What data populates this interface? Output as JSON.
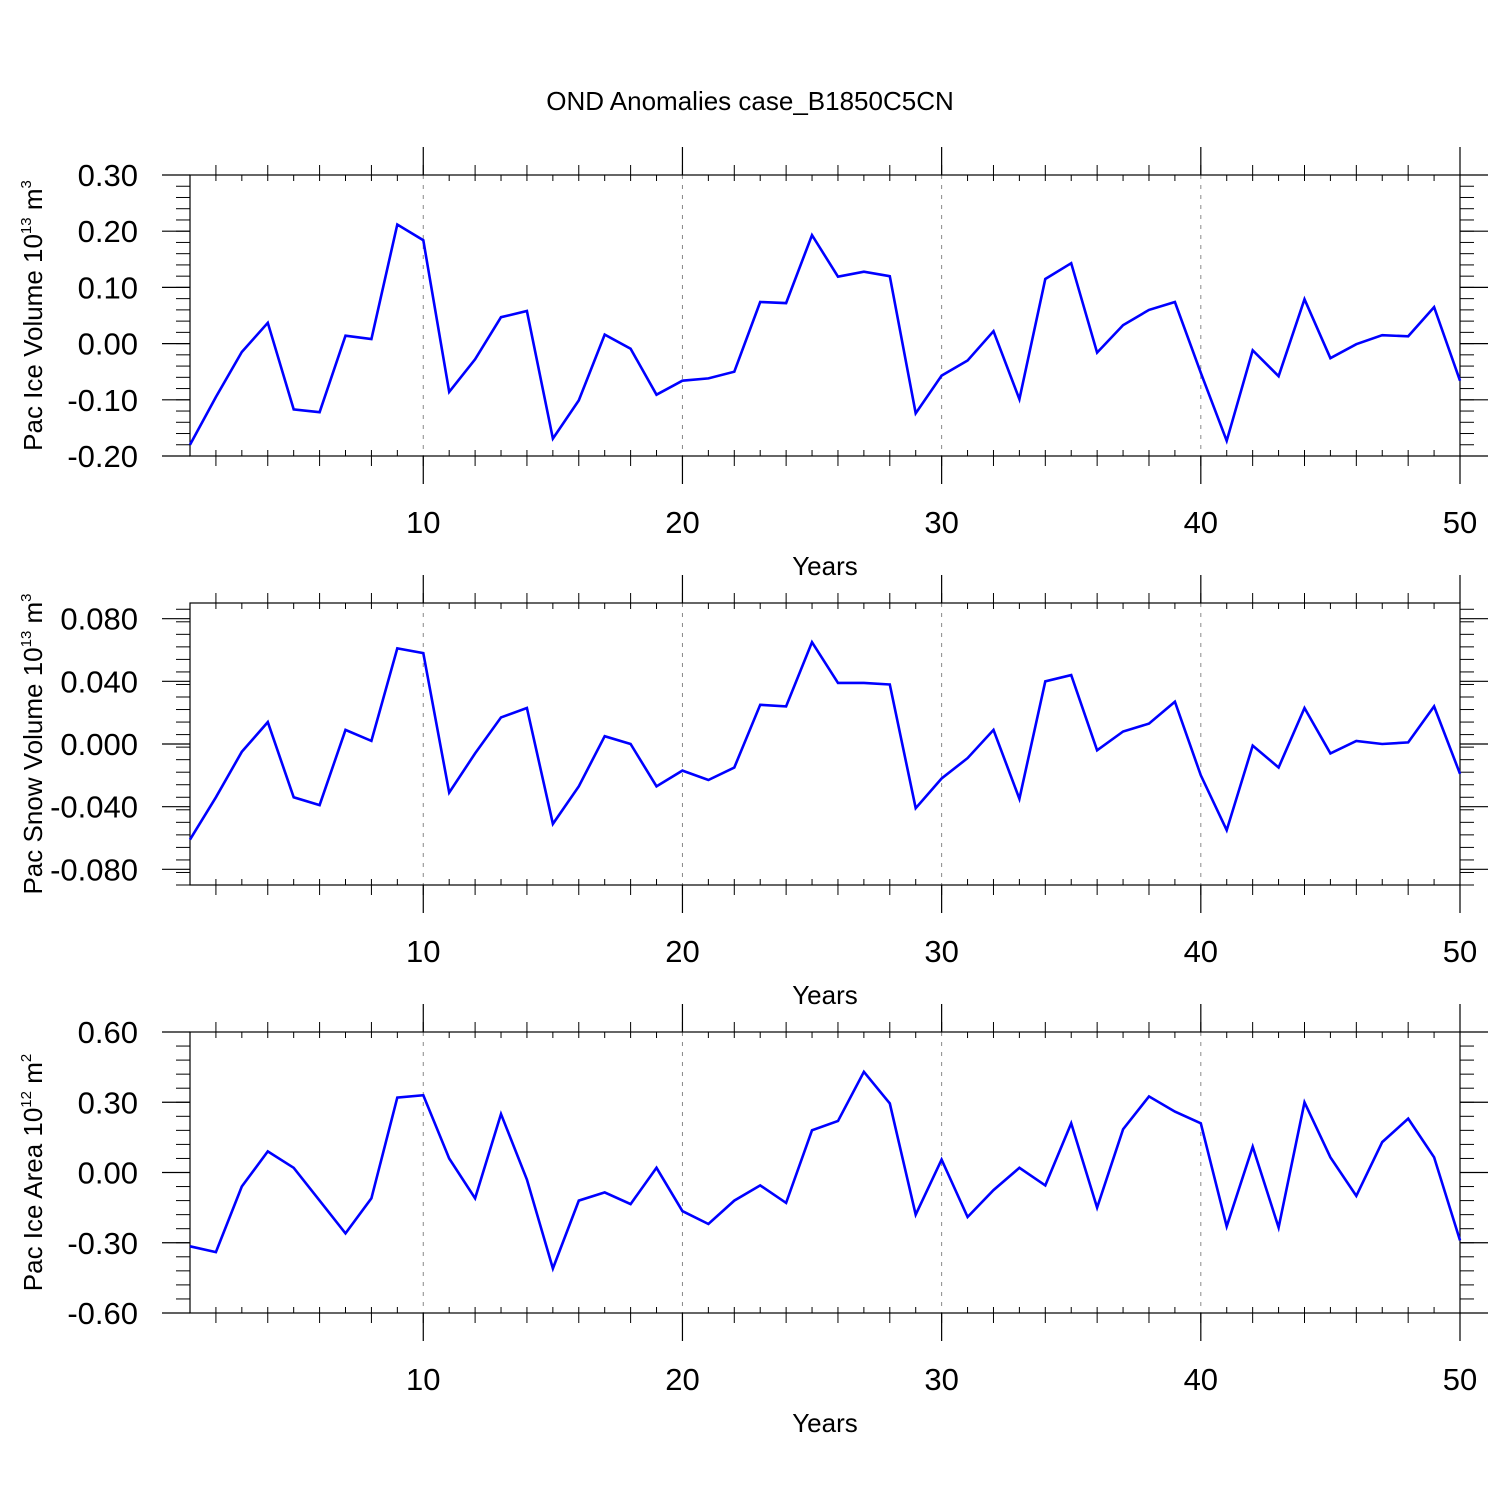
{
  "title": "OND Anomalies case_B1850C5CN",
  "colors": {
    "line": "#0000ff",
    "axis": "#000000",
    "grid": "#888888"
  },
  "chart_data": [
    {
      "type": "line",
      "xlabel": "Years",
      "ylabel": {
        "text": "Pac Ice Volume 10",
        "exp": "13",
        "unit": " m",
        "unit_exp": "3"
      },
      "xlim": [
        1,
        50
      ],
      "ylim": [
        -0.2,
        0.3
      ],
      "yticks": [
        -0.2,
        -0.1,
        0.0,
        0.1,
        0.2,
        0.3
      ],
      "ytick_labels": [
        "-0.20",
        "-0.10",
        "0.00",
        "0.10",
        "0.20",
        "0.30"
      ],
      "xticks": [
        10,
        20,
        30,
        40,
        50
      ],
      "xtick_labels": [
        "10",
        "20",
        "30",
        "40",
        "50"
      ],
      "grid": "vertical dashed at x ticks",
      "x": [
        1,
        2,
        3,
        4,
        5,
        6,
        7,
        8,
        9,
        10,
        11,
        12,
        13,
        14,
        15,
        16,
        17,
        18,
        19,
        20,
        21,
        22,
        23,
        24,
        25,
        26,
        27,
        28,
        29,
        30,
        31,
        32,
        33,
        34,
        35,
        36,
        37,
        38,
        39,
        40,
        41,
        42,
        43,
        44,
        45,
        46,
        47,
        48,
        49,
        50
      ],
      "values": [
        -0.18,
        -0.095,
        -0.015,
        0.037,
        -0.117,
        -0.122,
        0.014,
        0.008,
        0.212,
        0.184,
        -0.086,
        -0.028,
        0.047,
        0.058,
        -0.169,
        -0.101,
        0.016,
        -0.009,
        -0.091,
        -0.066,
        -0.062,
        -0.05,
        0.074,
        0.072,
        0.193,
        0.119,
        0.128,
        0.12,
        -0.124,
        -0.057,
        -0.03,
        0.022,
        -0.099,
        0.115,
        0.143,
        -0.016,
        0.033,
        0.06,
        0.074,
        -0.052,
        -0.173,
        -0.012,
        -0.058,
        0.079,
        -0.026,
        -0.001,
        0.015,
        0.013,
        0.065,
        -0.066
      ]
    },
    {
      "type": "line",
      "xlabel": "Years",
      "ylabel": {
        "text": "Pac Snow Volume 10",
        "exp": "13",
        "unit": " m",
        "unit_exp": "3"
      },
      "xlim": [
        1,
        50
      ],
      "ylim": [
        -0.09,
        0.09
      ],
      "yticks": [
        -0.08,
        -0.04,
        0.0,
        0.04,
        0.08
      ],
      "ytick_labels": [
        "-0.080",
        "-0.040",
        "0.000",
        "0.040",
        "0.080"
      ],
      "xticks": [
        10,
        20,
        30,
        40,
        50
      ],
      "xtick_labels": [
        "10",
        "20",
        "30",
        "40",
        "50"
      ],
      "grid": "vertical dashed at x ticks",
      "x": [
        1,
        2,
        3,
        4,
        5,
        6,
        7,
        8,
        9,
        10,
        11,
        12,
        13,
        14,
        15,
        16,
        17,
        18,
        19,
        20,
        21,
        22,
        23,
        24,
        25,
        26,
        27,
        28,
        29,
        30,
        31,
        32,
        33,
        34,
        35,
        36,
        37,
        38,
        39,
        40,
        41,
        42,
        43,
        44,
        45,
        46,
        47,
        48,
        49,
        50
      ],
      "values": [
        -0.061,
        -0.034,
        -0.005,
        0.014,
        -0.034,
        -0.039,
        0.009,
        0.002,
        0.061,
        0.058,
        -0.031,
        -0.006,
        0.017,
        0.023,
        -0.051,
        -0.027,
        0.005,
        0.0,
        -0.027,
        -0.017,
        -0.023,
        -0.015,
        0.025,
        0.024,
        0.065,
        0.039,
        0.039,
        0.038,
        -0.041,
        -0.022,
        -0.009,
        0.009,
        -0.035,
        0.04,
        0.044,
        -0.004,
        0.008,
        0.013,
        0.027,
        -0.02,
        -0.055,
        -0.001,
        -0.015,
        0.023,
        -0.006,
        0.002,
        0.0,
        0.001,
        0.024,
        -0.019
      ]
    },
    {
      "type": "line",
      "xlabel": "Years",
      "ylabel": {
        "text": "Pac Ice Area 10",
        "exp": "12",
        "unit": " m",
        "unit_exp": "2"
      },
      "xlim": [
        1,
        50
      ],
      "ylim": [
        -0.6,
        0.6
      ],
      "yticks": [
        -0.6,
        -0.3,
        0.0,
        0.3,
        0.6
      ],
      "ytick_labels": [
        "-0.60",
        "-0.30",
        "0.00",
        "0.30",
        "0.60"
      ],
      "xticks": [
        10,
        20,
        30,
        40,
        50
      ],
      "xtick_labels": [
        "10",
        "20",
        "30",
        "40",
        "50"
      ],
      "grid": "vertical dashed at x ticks",
      "x": [
        1,
        2,
        3,
        4,
        5,
        6,
        7,
        8,
        9,
        10,
        11,
        12,
        13,
        14,
        15,
        16,
        17,
        18,
        19,
        20,
        21,
        22,
        23,
        24,
        25,
        26,
        27,
        28,
        29,
        30,
        31,
        32,
        33,
        34,
        35,
        36,
        37,
        38,
        39,
        40,
        41,
        42,
        43,
        44,
        45,
        46,
        47,
        48,
        49,
        50
      ],
      "values": [
        -0.315,
        -0.34,
        -0.06,
        0.09,
        0.02,
        -0.12,
        -0.26,
        -0.11,
        0.32,
        0.33,
        0.06,
        -0.11,
        0.25,
        -0.03,
        -0.41,
        -0.12,
        -0.085,
        -0.135,
        0.02,
        -0.165,
        -0.22,
        -0.12,
        -0.055,
        -0.13,
        0.18,
        0.22,
        0.43,
        0.295,
        -0.18,
        0.055,
        -0.19,
        -0.075,
        0.02,
        -0.055,
        0.21,
        -0.15,
        0.185,
        0.325,
        0.26,
        0.21,
        -0.23,
        0.11,
        -0.235,
        0.3,
        0.065,
        -0.1,
        0.13,
        0.23,
        0.065,
        -0.29
      ]
    }
  ]
}
